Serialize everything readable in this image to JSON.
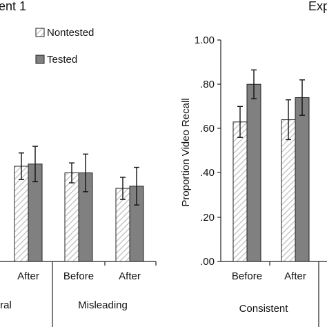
{
  "colors": {
    "tested": "#808080",
    "nontested_stripe": "#bfbfbf",
    "axis": "#222222",
    "errorbar": "#111111"
  },
  "figure": {
    "left_panel_title": "ent 1",
    "right_panel_title": "Exp"
  },
  "chart_data": [
    {
      "type": "bar",
      "panel": "left (cropped)",
      "title": "ent 1",
      "legend": {
        "placement": "top",
        "entries": [
          {
            "name": "Nontested",
            "pattern": "diagonal-hatch"
          },
          {
            "name": "Tested",
            "pattern": "solid-gray"
          }
        ]
      },
      "categories": [
        "After",
        "Before",
        "After"
      ],
      "groups": [
        {
          "label": "tral",
          "categories": [
            0
          ]
        },
        {
          "label": "Misleading",
          "categories": [
            1,
            2
          ]
        }
      ],
      "series": [
        {
          "name": "Nontested",
          "values": [
            0.43,
            0.4,
            0.33
          ],
          "errors": [
            0.06,
            0.045,
            0.05
          ]
        },
        {
          "name": "Tested",
          "values": [
            0.44,
            0.4,
            0.34
          ],
          "errors": [
            0.08,
            0.085,
            0.085
          ]
        }
      ],
      "ylim": [
        0,
        1
      ]
    },
    {
      "type": "bar",
      "panel": "right (cropped)",
      "title": "Exp",
      "ylabel": "Proportion Video Recall",
      "ylim": [
        0,
        1
      ],
      "yticks": [
        "1.00",
        ".80",
        ".60",
        ".40",
        ".20",
        ".00"
      ],
      "categories": [
        "Before",
        "After"
      ],
      "groups": [
        {
          "label": "Consistent",
          "categories": [
            0,
            1
          ]
        }
      ],
      "series": [
        {
          "name": "Nontested",
          "values": [
            0.63,
            0.64
          ],
          "errors": [
            0.07,
            0.09
          ]
        },
        {
          "name": "Tested",
          "values": [
            0.8,
            0.74
          ],
          "errors": [
            0.065,
            0.08
          ]
        }
      ]
    }
  ]
}
